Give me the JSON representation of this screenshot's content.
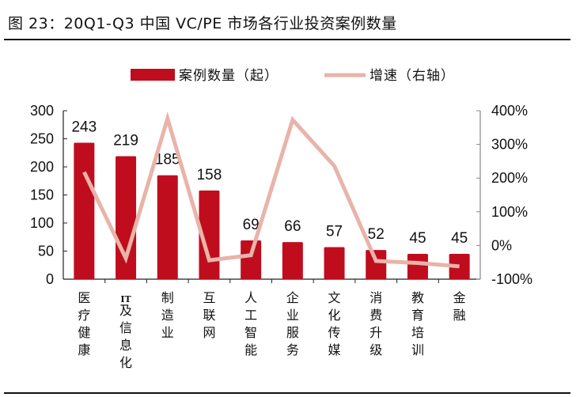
{
  "title": "图 23：20Q1-Q3 中国 VC/PE 市场各行业投资案例数量",
  "chart_data": {
    "type": "bar+line",
    "categories": [
      "医疗健康",
      "IT及信息化",
      "制造业",
      "互联网",
      "人工智能",
      "企业服务",
      "文化传媒",
      "消费升级",
      "教育培训",
      "金融"
    ],
    "series": [
      {
        "name": "案例数量（起）",
        "type": "bar",
        "axis": "left",
        "color": "#C00D1E",
        "values": [
          243,
          219,
          185,
          158,
          69,
          66,
          57,
          52,
          45,
          45
        ]
      },
      {
        "name": "增速（右轴）",
        "type": "line",
        "axis": "right",
        "color": "#E8B4A9",
        "values": [
          218,
          -38,
          377,
          -44,
          -29,
          373,
          236,
          -46,
          -52,
          -62
        ]
      }
    ],
    "left_axis": {
      "ylim": [
        0,
        300
      ],
      "ticks": [
        "0",
        "50",
        "100",
        "150",
        "200",
        "250",
        "300"
      ]
    },
    "right_axis": {
      "ylim": [
        -100,
        400
      ],
      "ticks": [
        "-100%",
        "0%",
        "100%",
        "200%",
        "300%",
        "400%"
      ]
    },
    "data_labels": [
      "243",
      "219",
      "185",
      "158",
      "69",
      "66",
      "57",
      "52",
      "45",
      "45"
    ],
    "legend_placement": "top",
    "grid": false
  }
}
